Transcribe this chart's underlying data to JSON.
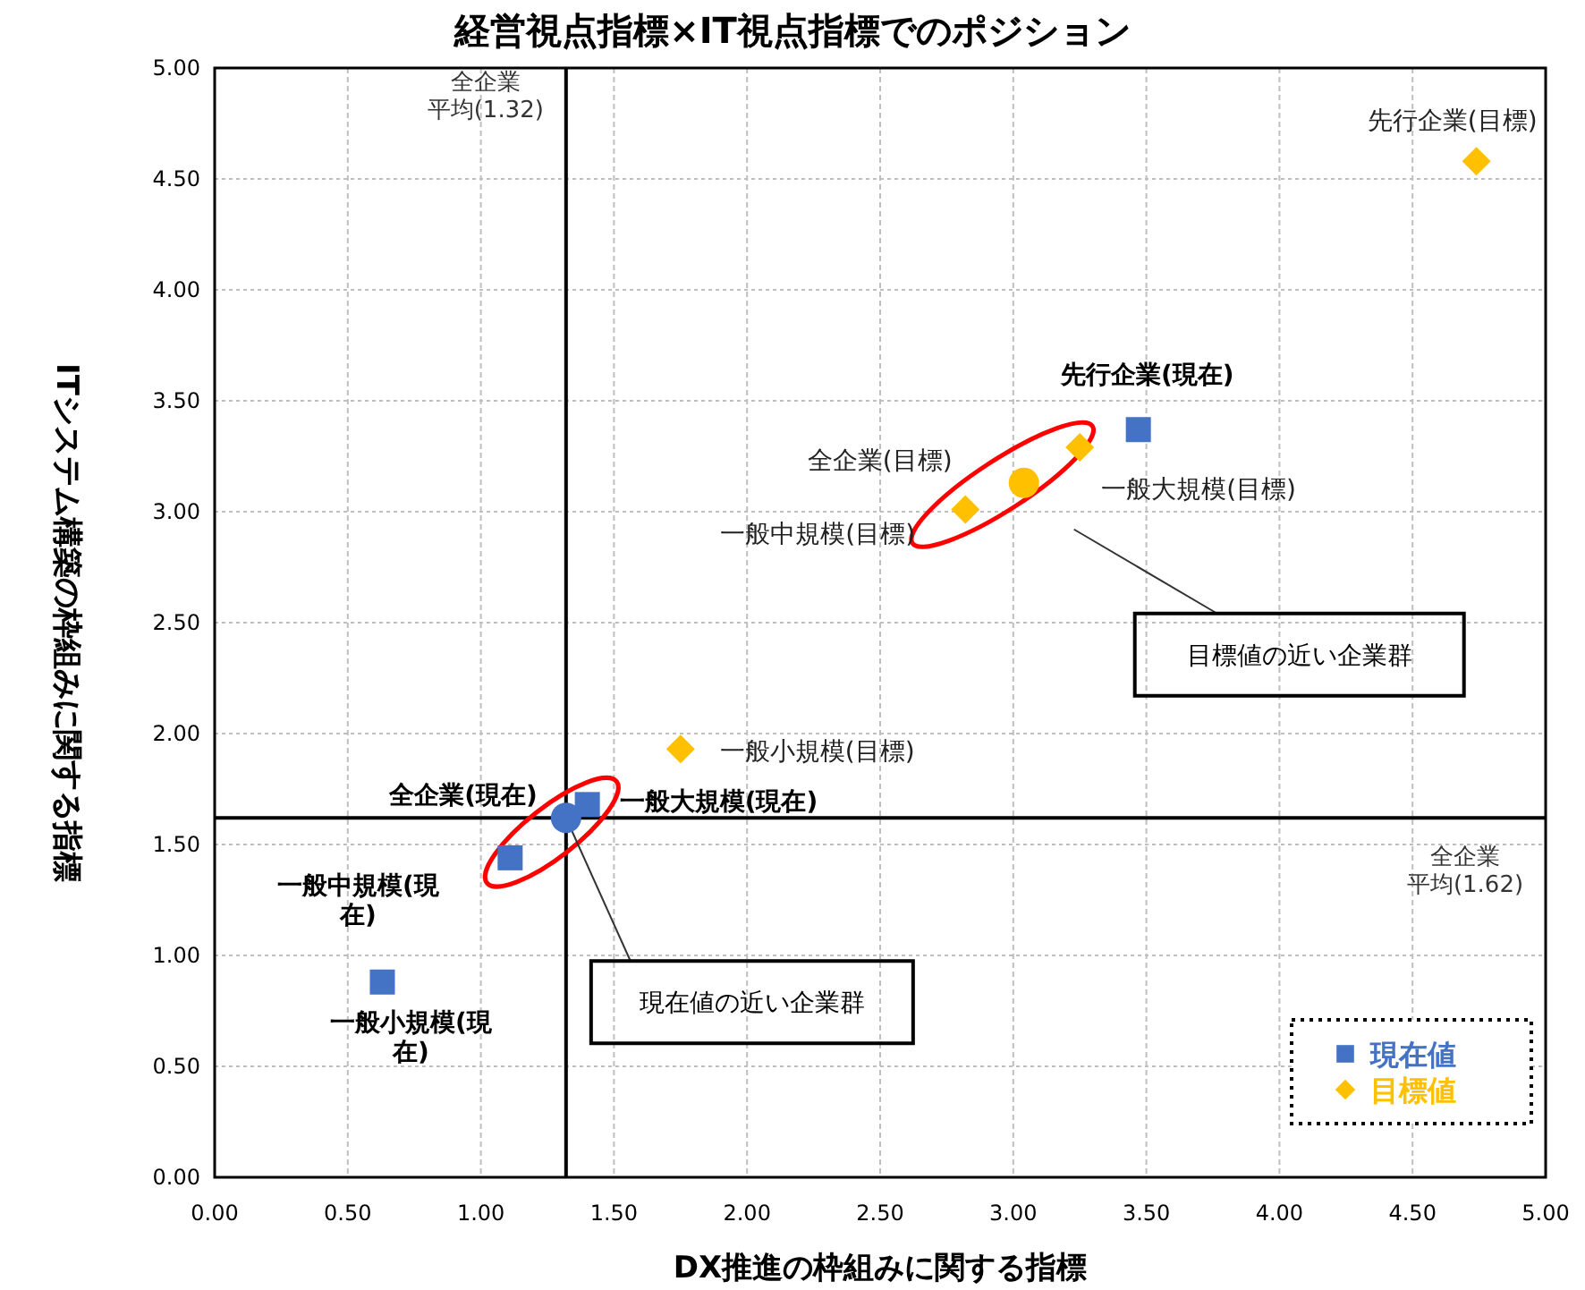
{
  "chart_data": {
    "type": "scatter",
    "title": "経営視点指標×IT視点指標でのポジション",
    "xlabel": "DX推進の枠組みに関する指標",
    "ylabel": "ITシステム構築の枠組みに関する指標",
    "xlim": [
      0,
      5
    ],
    "ylim": [
      0,
      5
    ],
    "xticks": [
      {
        "value": 0,
        "label": "0.00"
      },
      {
        "value": 0.5,
        "label": "0.50"
      },
      {
        "value": 1,
        "label": "1.00"
      },
      {
        "value": 1.5,
        "label": "1.50"
      },
      {
        "value": 2,
        "label": "2.00"
      },
      {
        "value": 2.5,
        "label": "2.50"
      },
      {
        "value": 3,
        "label": "3.00"
      },
      {
        "value": 3.5,
        "label": "3.50"
      },
      {
        "value": 4,
        "label": "4.00"
      },
      {
        "value": 4.5,
        "label": "4.50"
      },
      {
        "value": 5,
        "label": "5.00"
      }
    ],
    "yticks": [
      {
        "value": 0,
        "label": "0.00"
      },
      {
        "value": 0.5,
        "label": "0.50"
      },
      {
        "value": 1,
        "label": "1.00"
      },
      {
        "value": 1.5,
        "label": "1.50"
      },
      {
        "value": 2,
        "label": "2.00"
      },
      {
        "value": 2.5,
        "label": "2.50"
      },
      {
        "value": 3,
        "label": "3.00"
      },
      {
        "value": 3.5,
        "label": "3.50"
      },
      {
        "value": 4,
        "label": "4.00"
      },
      {
        "value": 4.5,
        "label": "4.50"
      },
      {
        "value": 5,
        "label": "5.00"
      }
    ],
    "grid": true,
    "legend": "bottom right",
    "series": [
      {
        "name": "現在値",
        "color": "#4472c4",
        "marker": "square",
        "x": [
          3.47,
          1.4,
          1.11,
          0.63
        ],
        "values": [
          3.37,
          1.68,
          1.44,
          0.88
        ]
      },
      {
        "name": "目標値",
        "color": "#ffc000",
        "marker": "diamond",
        "x": [
          4.74,
          3.25,
          2.82,
          1.75
        ],
        "values": [
          4.58,
          3.29,
          3.01,
          1.93
        ]
      },
      {
        "color": "#4472c4",
        "marker": "circle",
        "x": [
          1.32
        ],
        "values": [
          1.62
        ]
      },
      {
        "color": "#ffc000",
        "marker": "circle",
        "x": [
          3.04
        ],
        "values": [
          3.13
        ]
      }
    ],
    "ref_lines": [
      {
        "axis": "x",
        "value": 1.32,
        "label": "全企業平均(1.32)",
        "color": "#000000"
      },
      {
        "axis": "y",
        "value": 1.62,
        "label": "全企業平均(1.62)",
        "color": "#000000"
      }
    ],
    "annotations": [
      {
        "text": "先行企業(目標)",
        "x": 4.74,
        "y": 4.58
      },
      {
        "text": "先行企業(現在)",
        "x": 3.47,
        "y": 3.37
      },
      {
        "text": "全企業(目標)",
        "x": 3.04,
        "y": 3.13
      },
      {
        "text": "一般大規模(目標)",
        "x": 3.25,
        "y": 3.29
      },
      {
        "text": "一般中規模(目標)",
        "x": 2.82,
        "y": 3.01
      },
      {
        "text": "一般小規模(目標)",
        "x": 1.75,
        "y": 1.93
      },
      {
        "text": "一般大規模(現在)",
        "x": 1.4,
        "y": 1.68
      },
      {
        "text": "全企業(現在)",
        "x": 1.32,
        "y": 1.62
      },
      {
        "text": "一般中規模(現在)",
        "x": 1.11,
        "y": 1.44
      },
      {
        "text": "一般小規模(現在)",
        "x": 0.63,
        "y": 0.88
      },
      "目標値の近い企業群",
      {
        "text": "現在値の近い企業群",
        "x": 1.32,
        "y": 1.62
      }
    ]
  }
}
